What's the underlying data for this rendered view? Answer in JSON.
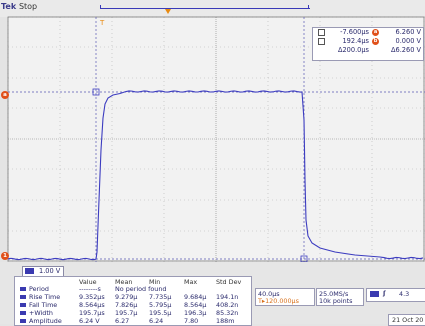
{
  "status": {
    "brand": "Tek",
    "state": "Stop"
  },
  "colors": {
    "trace": "#3c3cc0",
    "accent": "#e0501a",
    "trigger": "#e88a10",
    "grid": "#8c8c8c"
  },
  "markers": {
    "ref_a": "a",
    "ch1": "1",
    "trigger": "T"
  },
  "cursor_readout": {
    "rows": [
      {
        "left": "-7.600µs",
        "badge": "a",
        "right": "6.260 V"
      },
      {
        "left": "192.4µs",
        "badge": "b",
        "right": "0.000 V"
      },
      {
        "left": "Δ200.0µs",
        "badge": "",
        "right": "Δ6.260 V"
      }
    ]
  },
  "ch1_scale": "1.00 V",
  "measurements": {
    "headers": [
      "Value",
      "Mean",
      "Min",
      "Max",
      "Std Dev"
    ],
    "rows": [
      {
        "name": "Period",
        "value": "--------s",
        "mean": "No period found",
        "min": "",
        "max": "",
        "std": ""
      },
      {
        "name": "Rise Time",
        "value": "9.352µs",
        "mean": "9.279µ",
        "min": "7.735µ",
        "max": "9.684µ",
        "std": "194.1n"
      },
      {
        "name": "Fall Time",
        "value": "8.564µs",
        "mean": "7.826µ",
        "min": "5.795µ",
        "max": "8.564µ",
        "std": "408.2n"
      },
      {
        "name": "+Width",
        "value": "195.7µs",
        "mean": "195.7µ",
        "min": "195.5µ",
        "max": "196.3µ",
        "std": "85.32n"
      },
      {
        "name": "Amplitude",
        "value": "6.24 V",
        "mean": "6.27",
        "min": "6.24",
        "max": "7.80",
        "std": "188m"
      }
    ]
  },
  "horizontal": {
    "scale": "40.0µs",
    "position": "T▸120.000µs"
  },
  "acquisition": {
    "rate": "25.0MS/s",
    "points": "10k points"
  },
  "trigger": {
    "slope": "ʃ",
    "level": "4.3"
  },
  "date": "21 Oct 20"
}
